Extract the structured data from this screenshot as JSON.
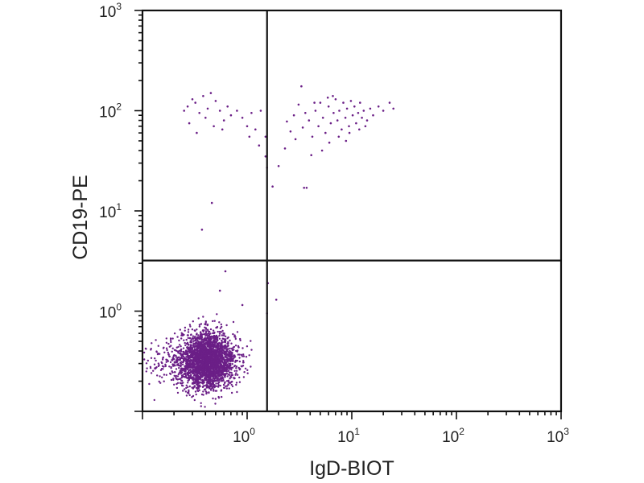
{
  "chart_data": {
    "type": "scatter",
    "title": "",
    "xlabel": "IgD-BIOT",
    "ylabel": "CD19-PE",
    "x_scale": "log",
    "y_scale": "log",
    "xlim": [
      0.1,
      1000
    ],
    "ylim": [
      0.1,
      1000
    ],
    "x_ticks": [
      {
        "value": 1,
        "base": "10",
        "exp": "0"
      },
      {
        "value": 10,
        "base": "10",
        "exp": "1"
      },
      {
        "value": 100,
        "base": "10",
        "exp": "2"
      },
      {
        "value": 1000,
        "base": "10",
        "exp": "3"
      }
    ],
    "y_ticks": [
      {
        "value": 1,
        "base": "10",
        "exp": "0"
      },
      {
        "value": 10,
        "base": "10",
        "exp": "1"
      },
      {
        "value": 100,
        "base": "10",
        "exp": "2"
      },
      {
        "value": 1000,
        "base": "10",
        "exp": "3"
      }
    ],
    "quadrant_gates": {
      "x": 1.55,
      "y": 3.2
    },
    "grid": false,
    "point_color": "#6b1f87",
    "series": [
      {
        "points": [
          [
            0.25,
            100
          ],
          [
            0.27,
            110
          ],
          [
            0.3,
            130
          ],
          [
            0.32,
            120
          ],
          [
            0.35,
            95
          ],
          [
            0.38,
            140
          ],
          [
            0.42,
            105
          ],
          [
            0.45,
            150
          ],
          [
            0.5,
            125
          ],
          [
            0.55,
            100
          ],
          [
            0.6,
            80
          ],
          [
            0.65,
            110
          ],
          [
            0.7,
            90
          ],
          [
            0.8,
            100
          ],
          [
            0.9,
            85
          ],
          [
            1.0,
            70
          ],
          [
            1.1,
            95
          ],
          [
            1.2,
            65
          ],
          [
            1.35,
            100
          ],
          [
            1.5,
            55
          ],
          [
            0.28,
            75
          ],
          [
            0.33,
            60
          ],
          [
            0.4,
            85
          ],
          [
            0.48,
            70
          ],
          [
            0.58,
            65
          ],
          [
            1.05,
            55
          ],
          [
            1.3,
            45
          ],
          [
            1.5,
            35
          ],
          [
            1.55,
            27
          ],
          [
            0.46,
            12
          ],
          [
            0.37,
            6.5
          ],
          [
            1.75,
            17.5
          ],
          [
            2.0,
            28
          ],
          [
            2.3,
            42
          ],
          [
            2.6,
            62
          ],
          [
            2.8,
            90
          ],
          [
            3.1,
            115
          ],
          [
            3.3,
            175
          ],
          [
            3.5,
            17
          ],
          [
            3.7,
            17
          ],
          [
            3.9,
            80
          ],
          [
            4.2,
            55
          ],
          [
            4.5,
            100
          ],
          [
            4.8,
            70
          ],
          [
            5.0,
            120
          ],
          [
            5.3,
            85
          ],
          [
            5.6,
            60
          ],
          [
            6.0,
            110
          ],
          [
            6.3,
            75
          ],
          [
            6.7,
            95
          ],
          [
            7.0,
            130
          ],
          [
            7.3,
            80
          ],
          [
            7.6,
            100
          ],
          [
            8.0,
            65
          ],
          [
            8.3,
            120
          ],
          [
            8.7,
            85
          ],
          [
            9.0,
            105
          ],
          [
            9.4,
            70
          ],
          [
            9.8,
            125
          ],
          [
            10.2,
            90
          ],
          [
            10.6,
            110
          ],
          [
            11.0,
            75
          ],
          [
            11.5,
            95
          ],
          [
            12.0,
            120
          ],
          [
            12.5,
            85
          ],
          [
            13.0,
            100
          ],
          [
            14.0,
            80
          ],
          [
            15.0,
            105
          ],
          [
            16.0,
            90
          ],
          [
            18.0,
            110
          ],
          [
            20.0,
            100
          ],
          [
            23.0,
            120
          ],
          [
            25.0,
            105
          ],
          [
            5.2,
            40
          ],
          [
            6.1,
            48
          ],
          [
            4.1,
            36
          ],
          [
            7.5,
            55
          ],
          [
            8.8,
            50
          ],
          [
            3.6,
            95
          ],
          [
            4.4,
            120
          ],
          [
            5.9,
            135
          ],
          [
            6.6,
            140
          ],
          [
            9.5,
            60
          ],
          [
            11.8,
            65
          ],
          [
            13.5,
            70
          ],
          [
            2.4,
            78
          ],
          [
            2.9,
            52
          ],
          [
            3.4,
            68
          ],
          [
            1.58,
            1.9
          ],
          [
            1.9,
            1.3
          ],
          [
            1.55,
            0.95
          ],
          [
            0.62,
            2.5
          ],
          [
            0.55,
            1.6
          ],
          [
            0.9,
            1.15
          ]
        ]
      }
    ]
  }
}
